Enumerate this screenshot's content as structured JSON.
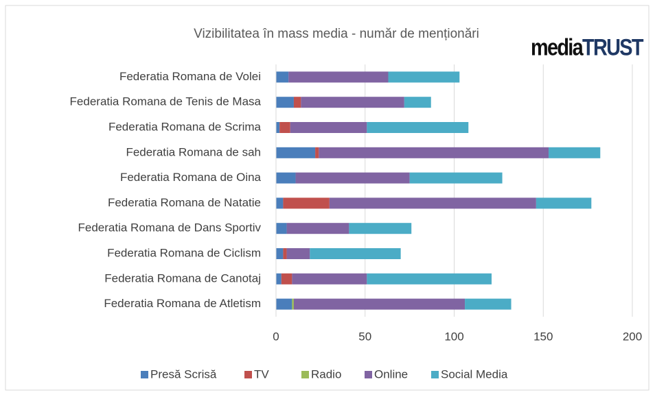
{
  "chart_data": {
    "type": "bar",
    "orientation": "horizontal",
    "stacked": true,
    "title": "Vizibilitatea în mass media - număr de menționări",
    "logo": {
      "prefix": "media",
      "suffix": "TRUST"
    },
    "categories": [
      "Federatia Romana de Volei",
      "Federatia Romana de Tenis de Masa",
      "Federatia Romana de Scrima",
      "Federatia Romana de sah",
      "Federatia Romana de Oina",
      "Federatia Romana de Natatie",
      "Federatia Romana de Dans Sportiv",
      "Federatia Romana de Ciclism",
      "Federatia Romana de Canotaj",
      "Federatia Romana de Atletism"
    ],
    "series": [
      {
        "name": "Presă Scrisă",
        "color": "#4a7ebb",
        "values": [
          7,
          10,
          2,
          22,
          11,
          4,
          6,
          4,
          3,
          9
        ]
      },
      {
        "name": "TV",
        "color": "#c0504d",
        "values": [
          0,
          4,
          6,
          2,
          0,
          26,
          0,
          2,
          6,
          0
        ]
      },
      {
        "name": "Radio",
        "color": "#9bbb59",
        "values": [
          0,
          0,
          0,
          0,
          0,
          0,
          0,
          0,
          0,
          1
        ]
      },
      {
        "name": "Online",
        "color": "#8064a2",
        "values": [
          56,
          58,
          43,
          129,
          64,
          116,
          35,
          13,
          42,
          96
        ]
      },
      {
        "name": "Social Media",
        "color": "#4bacc6",
        "values": [
          40,
          15,
          57,
          29,
          52,
          31,
          35,
          51,
          70,
          26
        ]
      }
    ],
    "xlim": [
      0,
      200
    ],
    "xticks": [
      0,
      50,
      100,
      150,
      200
    ],
    "grid": true,
    "legend": "bottom"
  }
}
